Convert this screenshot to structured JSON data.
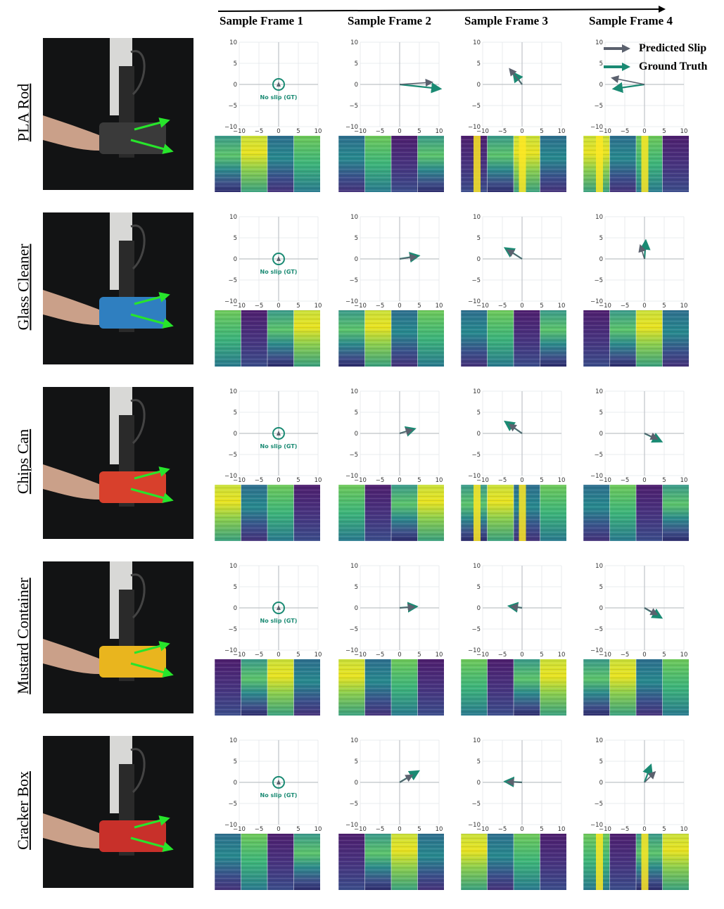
{
  "title_arrow": "sample-frame-timeline",
  "columns": [
    "Sample Frame 1",
    "Sample Frame 2",
    "Sample Frame 3",
    "Sample Frame 4"
  ],
  "legend": [
    {
      "label": "Predicted Slip",
      "color": "#5b616e"
    },
    {
      "label": "Ground Truth",
      "color": "#1a8a73"
    }
  ],
  "colors": {
    "predicted": "#5b616e",
    "ground_truth": "#1a8a73",
    "arrow_overlay": "#27e52b",
    "grid": "#e3e6ea",
    "axis": "#bfc3c8"
  },
  "no_slip_label": "No slip (GT)",
  "chart_data": {
    "type": "scatter",
    "description": "slip vectors per object per frame",
    "xlim": [
      -10,
      10
    ],
    "ylim": [
      -10,
      10
    ],
    "xticks": [
      "−10",
      "−5",
      "0",
      "5",
      "10"
    ],
    "yticks": [
      "10",
      "5",
      "0",
      "−5",
      "−10"
    ],
    "rows": [
      {
        "object": "PLA Rod",
        "frames": [
          {
            "no_slip": true
          },
          {
            "pred": [
              8,
              0.5
            ],
            "gt": [
              10,
              -1
            ]
          },
          {
            "pred": [
              -3,
              3.5
            ],
            "gt": [
              -2,
              2.5
            ]
          },
          {
            "pred": [
              -8,
              1.5
            ],
            "gt": [
              -7.5,
              -1
            ]
          }
        ]
      },
      {
        "object": "Glass Cleaner",
        "frames": [
          {
            "no_slip": true
          },
          {
            "pred": [
              4,
              0.5
            ],
            "gt": [
              4.5,
              0.7
            ]
          },
          {
            "pred": [
              -3.5,
              2
            ],
            "gt": [
              -4,
              2.4
            ]
          },
          {
            "pred": [
              -1,
              3
            ],
            "gt": [
              0.3,
              4
            ]
          }
        ]
      },
      {
        "object": "Chips Can",
        "frames": [
          {
            "no_slip": true
          },
          {
            "pred": [
              3,
              0.8
            ],
            "gt": [
              3.5,
              1
            ]
          },
          {
            "pred": [
              -3,
              2
            ],
            "gt": [
              -4,
              2.6
            ]
          },
          {
            "pred": [
              3,
              -1.2
            ],
            "gt": [
              4,
              -1.8
            ]
          }
        ]
      },
      {
        "object": "Mustard Container",
        "frames": [
          {
            "no_slip": true
          },
          {
            "pred": [
              3.5,
              0.2
            ],
            "gt": [
              4,
              0.3
            ]
          },
          {
            "pred": [
              -2.5,
              0.3
            ],
            "gt": [
              -3,
              0.4
            ]
          },
          {
            "pred": [
              3,
              -1.5
            ],
            "gt": [
              4,
              -2.2
            ]
          }
        ]
      },
      {
        "object": "Cracker Box",
        "frames": [
          {
            "no_slip": true
          },
          {
            "pred": [
              3,
              1.6
            ],
            "gt": [
              4.5,
              2.5
            ]
          },
          {
            "pred": [
              -3.5,
              0.1
            ],
            "gt": [
              -4,
              0.2
            ]
          },
          {
            "pred": [
              2.5,
              2.3
            ],
            "gt": [
              1.5,
              3.8
            ]
          }
        ]
      }
    ]
  }
}
